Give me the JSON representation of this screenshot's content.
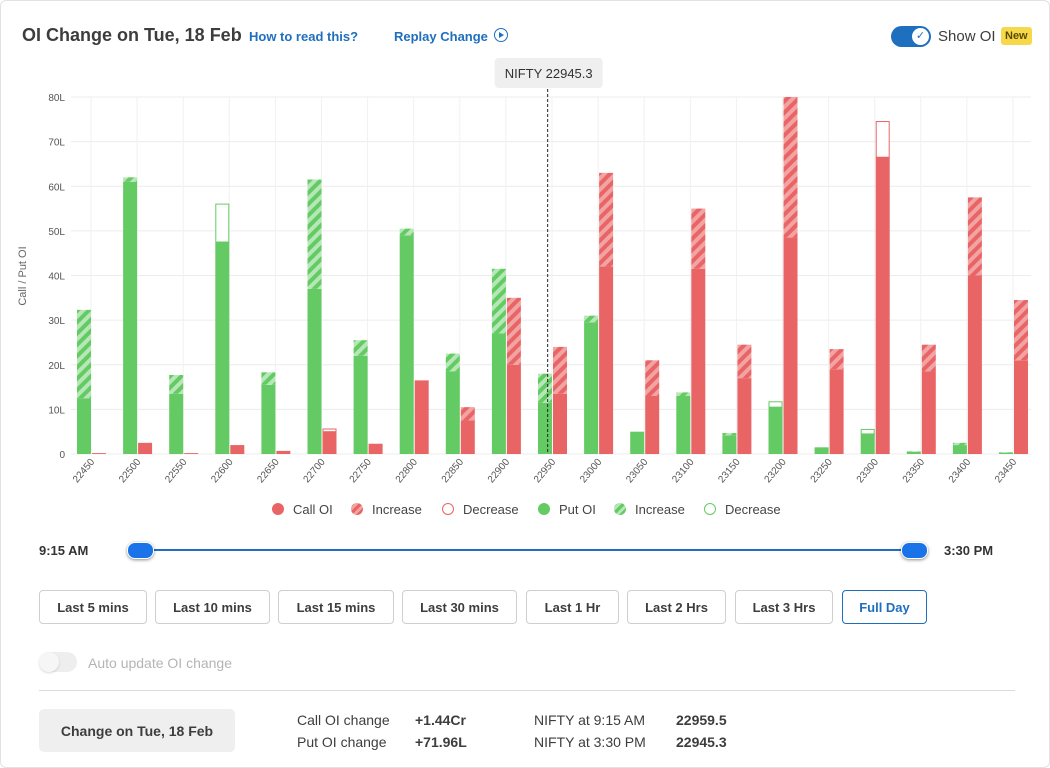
{
  "header": {
    "title": "OI Change on Tue, 18 Feb",
    "how_to_read": "How to read this?",
    "replay": "Replay Change",
    "show_oi": "Show OI",
    "new_badge": "New"
  },
  "chart_data": {
    "type": "bar",
    "ylabel": "Call / Put OI",
    "y_ticks": [
      "0",
      "10L",
      "20L",
      "30L",
      "40L",
      "50L",
      "60L",
      "70L",
      "80L"
    ],
    "ylim": [
      0,
      80
    ],
    "unit": "L",
    "marker_label": "NIFTY 22945.3",
    "marker_value": 22945.3,
    "strikes": [
      "22450",
      "22500",
      "22550",
      "22600",
      "22650",
      "22700",
      "22750",
      "22800",
      "22850",
      "22900",
      "22950",
      "23000",
      "23050",
      "23100",
      "23150",
      "23200",
      "23250",
      "23300",
      "23350",
      "23400",
      "23450"
    ],
    "put_oi": [
      12.5,
      61.0,
      13.5,
      47.5,
      15.5,
      37.0,
      22.0,
      49.0,
      18.5,
      27.0,
      11.5,
      29.5,
      5.0,
      13.0,
      4.2,
      10.5,
      1.5,
      4.5,
      0.5,
      2.0,
      0.3
    ],
    "put_change": [
      19.8,
      1.0,
      4.2,
      -8.5,
      2.8,
      24.5,
      3.5,
      1.5,
      4.0,
      14.5,
      6.5,
      1.5,
      0,
      0.8,
      0.5,
      -1.2,
      0,
      -1.0,
      0.1,
      0.5,
      0.1
    ],
    "call_oi": [
      0.2,
      2.5,
      0.2,
      2.0,
      0.7,
      5.0,
      2.3,
      16.5,
      7.5,
      20.0,
      13.5,
      42.0,
      13.0,
      41.5,
      17.0,
      48.5,
      19.0,
      66.5,
      18.5,
      40.0,
      21.0
    ],
    "call_change": [
      0,
      0,
      0,
      0,
      0,
      -0.6,
      0,
      0,
      3.0,
      15.0,
      10.5,
      21.0,
      8.0,
      13.5,
      7.5,
      31.5,
      4.5,
      -8.0,
      6.0,
      17.5,
      13.5
    ],
    "legend": [
      {
        "label": "Call OI",
        "kind": "call-solid"
      },
      {
        "label": "Increase",
        "kind": "call-increase"
      },
      {
        "label": "Decrease",
        "kind": "call-decrease"
      },
      {
        "label": "Put OI",
        "kind": "put-solid"
      },
      {
        "label": "Increase",
        "kind": "put-increase"
      },
      {
        "label": "Decrease",
        "kind": "put-decrease"
      }
    ],
    "colors": {
      "call": "#e96565",
      "put": "#64cb64"
    }
  },
  "range": {
    "start": "9:15 AM",
    "end": "3:30 PM"
  },
  "time_buttons": [
    "Last 5 mins",
    "Last 10 mins",
    "Last 15 mins",
    "Last 30 mins",
    "Last 1 Hr",
    "Last 2 Hrs",
    "Last 3 Hrs",
    "Full Day"
  ],
  "active_button": "Full Day",
  "auto_update_label": "Auto update OI change",
  "summary": {
    "change_button": "Change on Tue, 18 Feb",
    "call_label": "Call OI change",
    "call_value": "+1.44Cr",
    "put_label": "Put OI change",
    "put_value": "+71.96L",
    "nifty_start_label": "NIFTY at 9:15 AM",
    "nifty_start_value": "22959.5",
    "nifty_end_label": "NIFTY at 3:30 PM",
    "nifty_end_value": "22945.3"
  }
}
